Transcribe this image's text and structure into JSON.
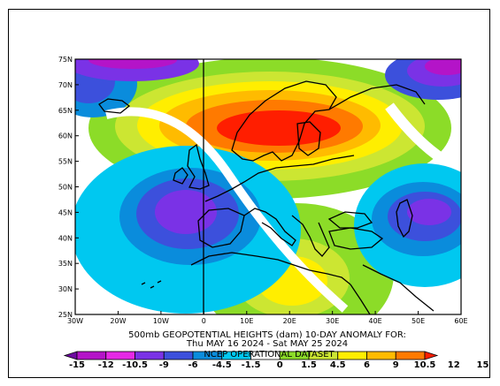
{
  "map": {
    "lat_labels": [
      "75N",
      "70N",
      "65N",
      "60N",
      "55N",
      "50N",
      "45N",
      "40N",
      "35N",
      "30N",
      "25N"
    ],
    "lon_labels": [
      "30W",
      "20W",
      "10W",
      "0",
      "10E",
      "20E",
      "30E",
      "40E",
      "50E",
      "60E"
    ]
  },
  "caption": {
    "line1": "500mb GEOPOTENTIAL HEIGHTS (dam)   10-DAY ANOMALY FOR:",
    "line2": "Thu MAY 16 2024 - Sat MAY 25 2024",
    "dataset": "NCEP OPERATIONAL DATASET"
  },
  "colorbar": {
    "labels": [
      "-15",
      "-12",
      "-10.5",
      "-9",
      "-6",
      "-4.5",
      "-1.5",
      "0",
      "1.5",
      "4.5",
      "6",
      "9",
      "10.5",
      "12",
      "15"
    ],
    "colors": [
      "#6e0aa0",
      "#b414c8",
      "#e628e6",
      "#7a32e6",
      "#3c50dc",
      "#0a8cdc",
      "#00c8f0",
      "#ffffff",
      "#8cdc28",
      "#cce632",
      "#ffee00",
      "#ffbb00",
      "#ff7a00",
      "#ff1e00"
    ]
  }
}
